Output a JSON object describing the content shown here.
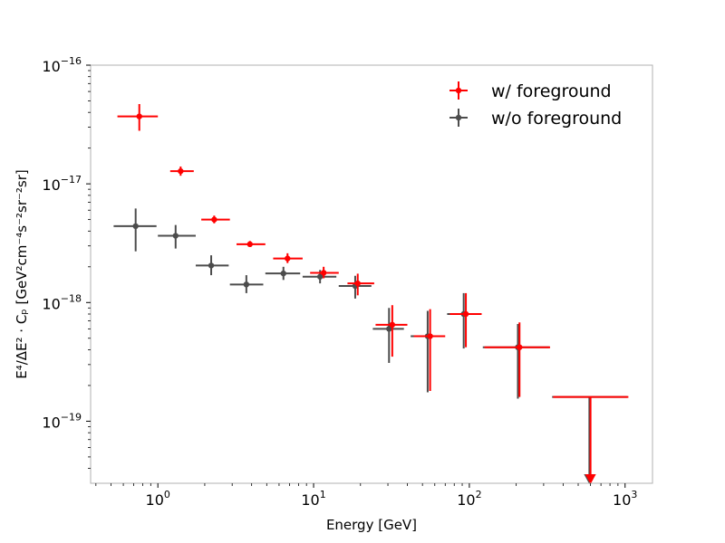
{
  "chart_data": {
    "type": "scatter",
    "title": "",
    "xlabel": "Energy [GeV]",
    "ylabel": "E⁴/ΔE² · Cₚ [GeV²cm⁻⁴s⁻²sr⁻²sr]",
    "xscale": "log",
    "yscale": "log",
    "xlim": [
      0.37,
      1500
    ],
    "ylim": [
      3e-20,
      1e-16
    ],
    "x_ticks": [
      {
        "value": 1,
        "base": "10",
        "exp": "0"
      },
      {
        "value": 10,
        "base": "10",
        "exp": "1"
      },
      {
        "value": 100,
        "base": "10",
        "exp": "2"
      },
      {
        "value": 1000,
        "base": "10",
        "exp": "3"
      }
    ],
    "y_ticks": [
      {
        "value": 1e-19,
        "base": "10",
        "exp": "−19"
      },
      {
        "value": 1e-18,
        "base": "10",
        "exp": "−18"
      },
      {
        "value": 1e-17,
        "base": "10",
        "exp": "−17"
      },
      {
        "value": 1e-16,
        "base": "10",
        "exp": "−16"
      }
    ],
    "legend_position": "top-right",
    "series": [
      {
        "name": "w/ foreground",
        "color": "#ff0000",
        "points": [
          {
            "x": 0.76,
            "xlo": 0.55,
            "xhi": 1.0,
            "y": 3.7e-17,
            "ylo": 2.8e-17,
            "yhi": 4.7e-17
          },
          {
            "x": 1.4,
            "xlo": 1.2,
            "xhi": 1.7,
            "y": 1.28e-17,
            "ylo": 1.17e-17,
            "yhi": 1.4e-17
          },
          {
            "x": 2.3,
            "xlo": 1.9,
            "xhi": 2.9,
            "y": 5e-18,
            "ylo": 4.65e-18,
            "yhi": 5.4e-18
          },
          {
            "x": 3.9,
            "xlo": 3.2,
            "xhi": 4.9,
            "y": 3.1e-18,
            "ylo": 2.95e-18,
            "yhi": 3.3e-18
          },
          {
            "x": 6.8,
            "xlo": 5.5,
            "xhi": 8.5,
            "y": 2.35e-18,
            "ylo": 2.15e-18,
            "yhi": 2.6e-18
          },
          {
            "x": 11.6,
            "xlo": 9.5,
            "xhi": 14.5,
            "y": 1.78e-18,
            "ylo": 1.6e-18,
            "yhi": 2e-18
          },
          {
            "x": 19.2,
            "xlo": 16.5,
            "xhi": 24.5,
            "y": 1.45e-18,
            "ylo": 1.15e-18,
            "yhi": 1.75e-18
          },
          {
            "x": 32,
            "xlo": 25,
            "xhi": 40,
            "y": 6.5e-19,
            "ylo": 3.5e-19,
            "yhi": 9.5e-19
          },
          {
            "x": 56,
            "xlo": 44,
            "xhi": 70,
            "y": 5.2e-19,
            "ylo": 1.8e-19,
            "yhi": 8.8e-19
          },
          {
            "x": 95,
            "xlo": 75,
            "xhi": 120,
            "y": 8e-19,
            "ylo": 4.2e-19,
            "yhi": 1.2e-18
          },
          {
            "x": 210,
            "xlo": 125,
            "xhi": 330,
            "y": 4.2e-19,
            "ylo": 1.6e-19,
            "yhi": 6.8e-19
          },
          {
            "x": 600,
            "xlo": 345,
            "xhi": 1050,
            "y": null,
            "ylo": null,
            "yhi": 1.6e-19,
            "upper_limit": true
          }
        ]
      },
      {
        "name": "w/o foreground",
        "color": "#4c4c4c",
        "points": [
          {
            "x": 0.72,
            "xlo": 0.52,
            "xhi": 0.98,
            "y": 4.4e-18,
            "ylo": 2.7e-18,
            "yhi": 6.2e-18
          },
          {
            "x": 1.3,
            "xlo": 1.0,
            "xhi": 1.75,
            "y": 3.65e-18,
            "ylo": 2.85e-18,
            "yhi": 4.5e-18
          },
          {
            "x": 2.2,
            "xlo": 1.75,
            "xhi": 2.85,
            "y": 2.05e-18,
            "ylo": 1.7e-18,
            "yhi": 2.5e-18
          },
          {
            "x": 3.7,
            "xlo": 2.9,
            "xhi": 4.75,
            "y": 1.42e-18,
            "ylo": 1.2e-18,
            "yhi": 1.7e-18
          },
          {
            "x": 6.4,
            "xlo": 4.9,
            "xhi": 8.2,
            "y": 1.76e-18,
            "ylo": 1.55e-18,
            "yhi": 2e-18
          },
          {
            "x": 11.0,
            "xlo": 8.5,
            "xhi": 14.0,
            "y": 1.65e-18,
            "ylo": 1.45e-18,
            "yhi": 1.88e-18
          },
          {
            "x": 18.5,
            "xlo": 14.5,
            "xhi": 23.5,
            "y": 1.38e-18,
            "ylo": 1.08e-18,
            "yhi": 1.68e-18
          },
          {
            "x": 30.5,
            "xlo": 24,
            "xhi": 38,
            "y": 6e-19,
            "ylo": 3.1e-19,
            "yhi": 9e-19
          },
          {
            "x": 54,
            "xlo": 42,
            "xhi": 68,
            "y": 5.2e-19,
            "ylo": 1.75e-19,
            "yhi": 8.5e-19
          },
          {
            "x": 92,
            "xlo": 72,
            "xhi": 118,
            "y": 8e-19,
            "ylo": 4.1e-19,
            "yhi": 1.2e-18
          },
          {
            "x": 205,
            "xlo": 122,
            "xhi": 325,
            "y": 4.2e-19,
            "ylo": 1.55e-19,
            "yhi": 6.6e-19
          },
          {
            "x": 590,
            "xlo": 340,
            "xhi": 1030,
            "y": null,
            "ylo": null,
            "yhi": 1.6e-19,
            "upper_limit": true
          }
        ]
      }
    ]
  }
}
